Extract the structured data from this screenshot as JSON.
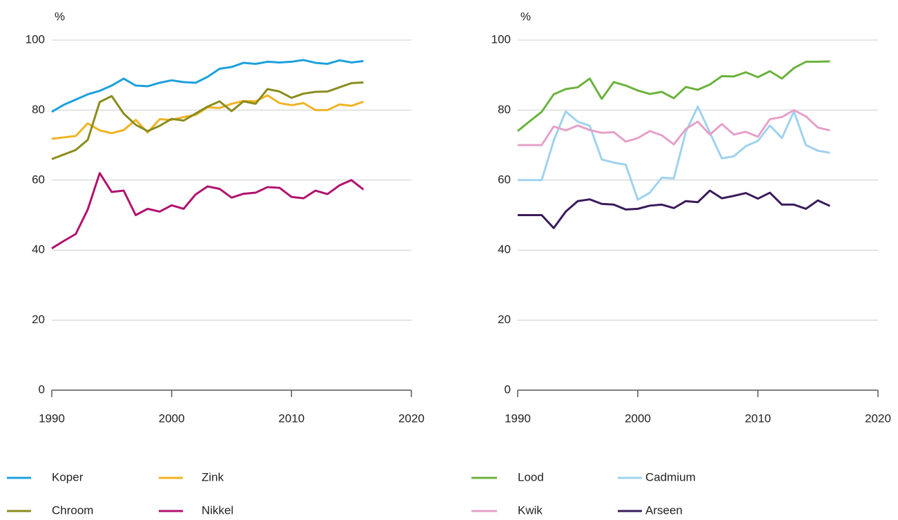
{
  "chart_data": [
    {
      "type": "line",
      "y_label": "%",
      "x": [
        1990,
        1991,
        1992,
        1993,
        1994,
        1995,
        1996,
        1997,
        1998,
        1999,
        2000,
        2001,
        2002,
        2003,
        2004,
        2005,
        2006,
        2007,
        2008,
        2009,
        2010,
        2011,
        2012,
        2013,
        2014,
        2015,
        2016
      ],
      "series": [
        {
          "name": "Koper",
          "color": "#1ba0dc",
          "values": [
            79.5,
            81.5,
            83,
            84.5,
            85.5,
            87,
            89,
            87,
            86.8,
            87.8,
            88.5,
            88,
            87.8,
            89.5,
            91.8,
            92.3,
            93.5,
            93.2,
            93.8,
            93.6,
            93.8,
            94.3,
            93.5,
            93.2,
            94.2,
            93.6,
            94
          ]
        },
        {
          "name": "Zink",
          "color": "#f0b323",
          "values": [
            71.8,
            72.2,
            72.6,
            76.2,
            74.2,
            73.4,
            74.3,
            77.2,
            73.6,
            77.4,
            77.2,
            78,
            78.6,
            80.8,
            80.6,
            81.8,
            82.6,
            82.5,
            84.2,
            82,
            81.4,
            82,
            80,
            80,
            81.6,
            81.2,
            82.4
          ]
        },
        {
          "name": "Chroom",
          "color": "#8a8c1e",
          "values": [
            66,
            67.3,
            68.6,
            71.5,
            82.3,
            84,
            79,
            75.8,
            74,
            75.5,
            77.5,
            77,
            79,
            81,
            82.5,
            79.7,
            82.5,
            81.8,
            86,
            85.3,
            83.5,
            84.7,
            85.2,
            85.3,
            86.5,
            87.7,
            87.9
          ]
        },
        {
          "name": "Nikkel",
          "color": "#b0116e",
          "values": [
            40.5,
            42.6,
            44.6,
            51.6,
            62,
            56.6,
            57,
            50,
            51.8,
            51,
            52.8,
            51.8,
            55.9,
            58.2,
            57.5,
            55,
            56.1,
            56.4,
            58,
            57.8,
            55.2,
            54.8,
            57,
            56,
            58.5,
            60,
            57.3
          ]
        }
      ],
      "xlim": [
        1990,
        2020
      ],
      "ylim": [
        0,
        100
      ],
      "xticks": [
        1990,
        2000,
        2010,
        2020
      ],
      "yticks": [
        0,
        20,
        40,
        60,
        80,
        100
      ],
      "grid": true
    },
    {
      "type": "line",
      "y_label": "%",
      "x": [
        1990,
        1991,
        1992,
        1993,
        1994,
        1995,
        1996,
        1997,
        1998,
        1999,
        2000,
        2001,
        2002,
        2003,
        2004,
        2005,
        2006,
        2007,
        2008,
        2009,
        2010,
        2011,
        2012,
        2013,
        2014,
        2015,
        2016
      ],
      "series": [
        {
          "name": "Lood",
          "color": "#6ab23c",
          "values": [
            74,
            76.8,
            79.5,
            84.5,
            86,
            86.5,
            89,
            83.2,
            88,
            87,
            85.6,
            84.6,
            85.2,
            83.4,
            86.6,
            85.8,
            87.3,
            89.7,
            89.6,
            90.8,
            89.4,
            91.1,
            89,
            92,
            93.8,
            93.8,
            93.9
          ]
        },
        {
          "name": "Cadmium",
          "color": "#9fd2ef",
          "values": [
            60,
            60,
            60,
            71.3,
            79.6,
            76.7,
            75.5,
            65.9,
            65,
            64.4,
            54.4,
            56.4,
            60.7,
            60.5,
            73.8,
            81,
            73.6,
            66.2,
            66.8,
            69.7,
            71.2,
            75.6,
            72,
            79.6,
            70,
            68.4,
            67.8
          ]
        },
        {
          "name": "Kwik",
          "color": "#e6a0c8",
          "values": [
            70,
            70,
            70,
            75.3,
            74.2,
            75.6,
            74.3,
            73.5,
            73.7,
            71,
            72,
            74,
            72.8,
            70.2,
            74.6,
            76.7,
            73,
            76,
            73,
            73.8,
            72.4,
            77.4,
            78,
            80,
            78.2,
            75,
            74.2
          ]
        },
        {
          "name": "Arseen",
          "color": "#3a1a5a",
          "values": [
            50,
            50,
            50,
            46.3,
            51,
            54,
            54.5,
            53.2,
            53,
            51.6,
            51.8,
            52.7,
            53,
            52,
            54,
            53.7,
            57,
            54.8,
            55.5,
            56.3,
            54.7,
            56.4,
            53,
            53,
            51.8,
            54.2,
            52.6
          ]
        }
      ],
      "xlim": [
        1990,
        2020
      ],
      "ylim": [
        0,
        100
      ],
      "xticks": [
        1990,
        2000,
        2010,
        2020
      ],
      "yticks": [
        0,
        20,
        40,
        60,
        80,
        100
      ],
      "grid": true
    }
  ]
}
